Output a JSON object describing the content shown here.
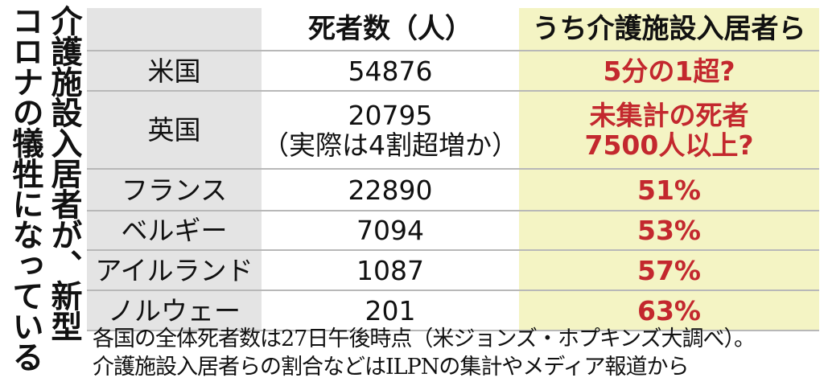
{
  "title": {
    "lines": [
      "介護施設入居者が、新型",
      "コロナの犠牲になっている"
    ]
  },
  "table": {
    "header": [
      "",
      "死者数（人）",
      "うち介護施設入居者ら"
    ],
    "rows": [
      [
        "米国",
        [
          "54876"
        ],
        [
          "5分の1超?"
        ]
      ],
      [
        "英国",
        [
          "20795",
          "（実際は4割超増か）"
        ],
        [
          "未集計の死者",
          "7500人以上?"
        ]
      ],
      [
        "フランス",
        [
          "22890"
        ],
        [
          "51%"
        ]
      ],
      [
        "ベルギー",
        [
          "7094"
        ],
        [
          "53%"
        ]
      ],
      [
        "アイルランド",
        [
          "1087"
        ],
        [
          "57%"
        ]
      ],
      [
        "ノルウェー",
        [
          "201"
        ],
        [
          "63%"
        ]
      ]
    ],
    "heights": null
  },
  "footnote": [
    "各国の全体死者数は27日午後時点（米ジョンズ・ホプキンズ大調べ）。",
    "介護施設入居者らの割合などはILPNの集計やメディア報道から"
  ]
}
